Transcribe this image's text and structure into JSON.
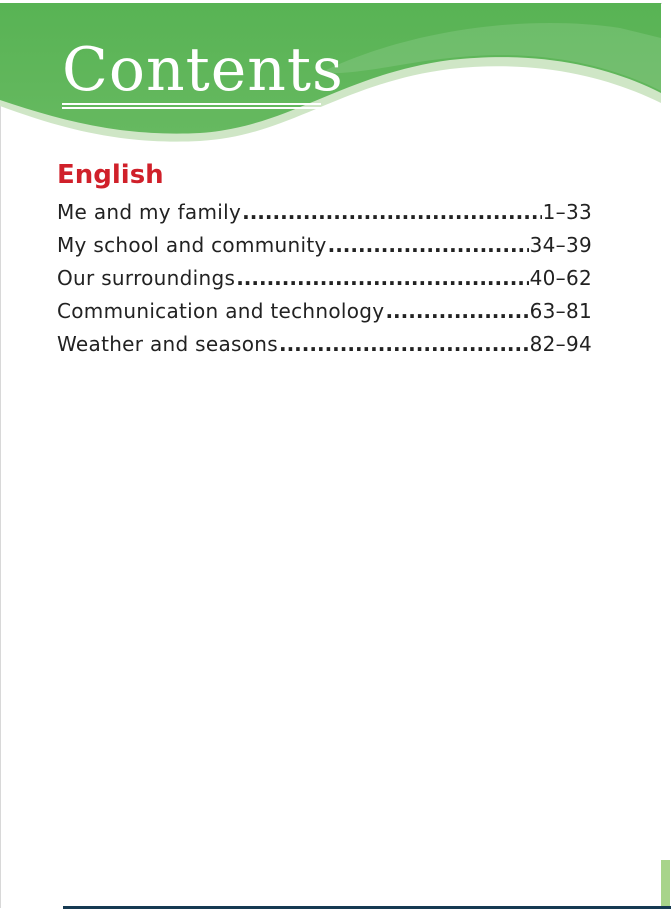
{
  "header": {
    "title": "Contents",
    "banner_color": "#5cb85c"
  },
  "section": {
    "title": "English",
    "color": "#d0202a"
  },
  "toc": [
    {
      "label": "Me and my family",
      "pages": "1–33"
    },
    {
      "label": "My school and community",
      "pages": "34–39"
    },
    {
      "label": "Our surroundings",
      "pages": "40–62"
    },
    {
      "label": "Communication and technology",
      "pages": "63–81"
    },
    {
      "label": "Weather and seasons",
      "pages": "82–94"
    }
  ]
}
